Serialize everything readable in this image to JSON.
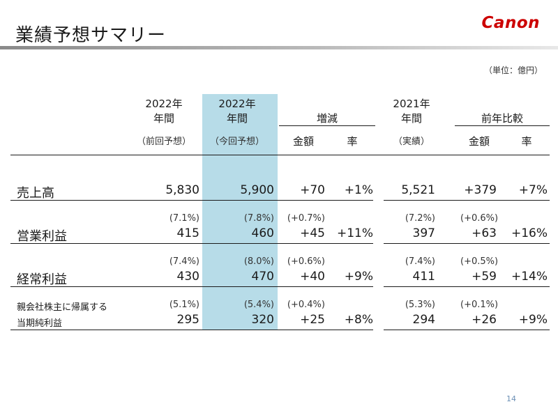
{
  "title": "業績予想サマリー",
  "logo": "Canon",
  "unit": "（単位：億円）",
  "page_number": "14",
  "headers": {
    "col1_line1": "2022年",
    "col1_line2": "年間",
    "col1_sub": "（前回予想）",
    "col2_line1": "2022年",
    "col2_line2": "年間",
    "col2_sub": "（今回予想）",
    "change_group": "増減",
    "change_amount": "金額",
    "change_rate": "率",
    "col5_line1": "2021年",
    "col5_line2": "年間",
    "col5_sub": "（実績）",
    "yoy_group": "前年比較",
    "yoy_amount": "金額",
    "yoy_rate": "率"
  },
  "rows": [
    {
      "label": "売上高",
      "label2": "",
      "pct": [
        "",
        "",
        "",
        "",
        "",
        ""
      ],
      "values": [
        "5,830",
        "5,900",
        "+70",
        "+1%",
        "5,521",
        "+379",
        "+7%"
      ]
    },
    {
      "label": "営業利益",
      "label2": "",
      "pct": [
        "(7.1%)",
        "(7.8%)",
        "(+0.7%)",
        "(7.2%)",
        "(+0.6%)",
        ""
      ],
      "values": [
        "415",
        "460",
        "+45",
        "+11%",
        "397",
        "+63",
        "+16%"
      ]
    },
    {
      "label": "経常利益",
      "label2": "",
      "pct": [
        "(7.4%)",
        "(8.0%)",
        "(+0.6%)",
        "(7.4%)",
        "(+0.5%)",
        ""
      ],
      "values": [
        "430",
        "470",
        "+40",
        "+9%",
        "411",
        "+59",
        "+14%"
      ]
    },
    {
      "label": "親会社株主に帰属する",
      "label2": "当期純利益",
      "pct": [
        "(5.1%)",
        "(5.4%)",
        "(+0.4%)",
        "(5.3%)",
        "(+0.1%)",
        ""
      ],
      "values": [
        "295",
        "320",
        "+25",
        "+8%",
        "294",
        "+26",
        "+9%"
      ]
    }
  ]
}
